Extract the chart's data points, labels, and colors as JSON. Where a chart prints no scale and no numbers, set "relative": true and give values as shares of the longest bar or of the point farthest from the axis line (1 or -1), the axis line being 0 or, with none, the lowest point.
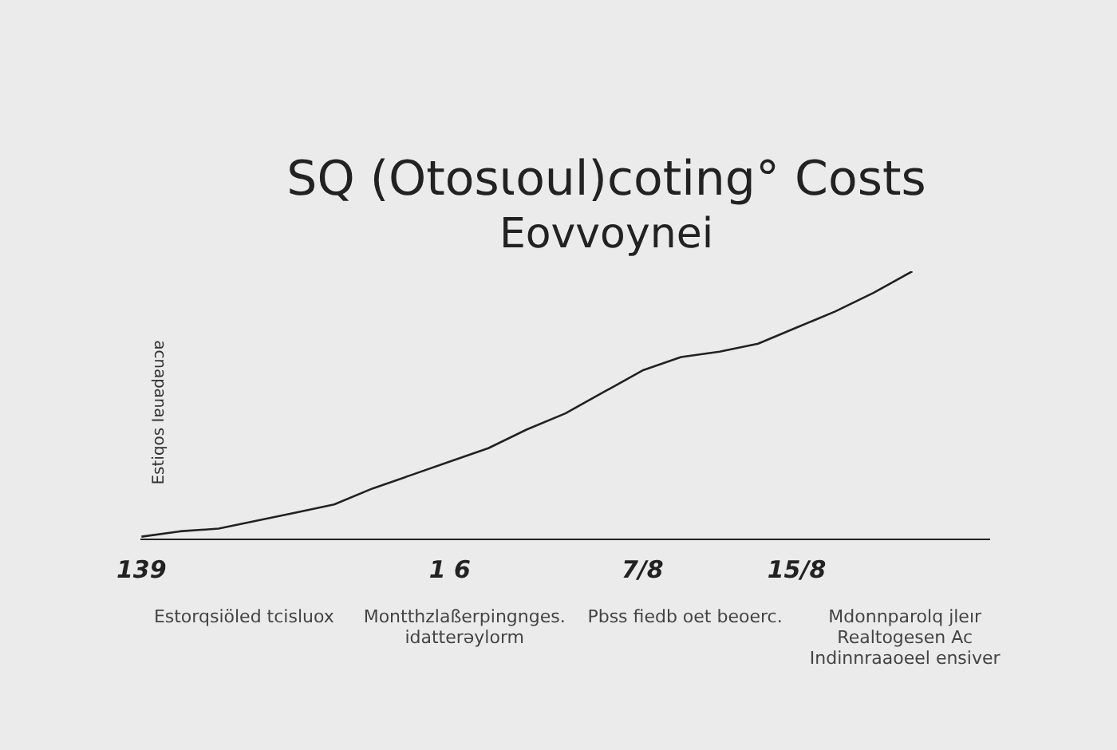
{
  "chart_data": {
    "type": "line",
    "title": "SQ (Otosɩoul)coting° Costs",
    "subtitle": "Eovvoynei",
    "ylabel": "Estiqos Ιɐuɐdɐuɔɐ",
    "categories": [
      "139",
      null,
      null,
      null,
      null,
      null,
      null,
      null,
      "1 6",
      null,
      null,
      null,
      null,
      "7/8",
      null,
      null,
      null,
      "15/8",
      null,
      null,
      null,
      null,
      null
    ],
    "relative": true,
    "series": [
      {
        "color": "#222222",
        "values": [
          0.01,
          0.03,
          0.04,
          0.07,
          0.1,
          0.13,
          0.19,
          0.24,
          0.29,
          0.34,
          0.41,
          0.47,
          0.55,
          0.63,
          0.68,
          0.7,
          0.73,
          0.79,
          0.85,
          0.92,
          1.0,
          null,
          null
        ]
      }
    ],
    "annotations": [
      "Estorqsiöled tcisluox",
      "Montthzlaßerpingnges. idatterəylorm",
      "Pbss fiedb oet beoerc.",
      "Mdonnparolq jleır Realtogesen Ac Indinnraaoeel ensiver"
    ],
    "grid": false,
    "legend": false,
    "marker": "none",
    "line_style": "solid"
  }
}
